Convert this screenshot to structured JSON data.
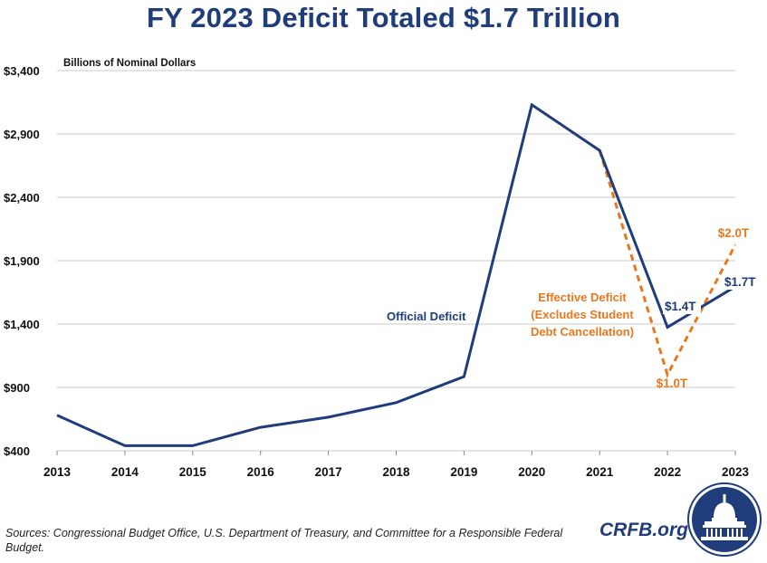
{
  "title": "FY 2023 Deficit Totaled $1.7 Trillion",
  "source": "Sources: Congressional Budget Office, U.S. Department of Treasury, and Committee for a Responsible Federal Budget.",
  "brand": "CRFB.org",
  "colors": {
    "navy": "#1f3d7a",
    "orange": "#e8781e",
    "grid": "#c8c8c8"
  },
  "chart_data": {
    "type": "line",
    "ylabel": "Billions of Nominal Dollars",
    "x": [
      "2013",
      "2014",
      "2015",
      "2016",
      "2017",
      "2018",
      "2019",
      "2020",
      "2021",
      "2022",
      "2023"
    ],
    "ylim": [
      400,
      3400
    ],
    "yticks": [
      400,
      900,
      1400,
      1900,
      2400,
      2900,
      3400
    ],
    "ytick_labels": [
      "$400",
      "$900",
      "$1,400",
      "$1,900",
      "$2,400",
      "$2,900",
      "$3,400"
    ],
    "grid": true,
    "series": [
      {
        "name": "Official Deficit",
        "style": "solid",
        "color": "#1f3d7a",
        "x": [
          "2013",
          "2014",
          "2015",
          "2016",
          "2017",
          "2018",
          "2019",
          "2020",
          "2021",
          "2022",
          "2023"
        ],
        "values": [
          680,
          440,
          440,
          585,
          665,
          780,
          985,
          3130,
          2770,
          1375,
          1695
        ]
      },
      {
        "name": "Effective Deficit (Excludes Student Debt Cancellation)",
        "style": "dashed",
        "color": "#e8781e",
        "x": [
          "2021",
          "2022",
          "2023"
        ],
        "values": [
          2770,
          1000,
          2025
        ]
      }
    ],
    "annotations": [
      {
        "text": "Official Deficit",
        "color": "#1f3d7a"
      },
      {
        "text": "$1.4T",
        "color": "#1f3d7a"
      },
      {
        "text": "$1.7T",
        "color": "#1f3d7a"
      },
      {
        "lines": [
          "Effective Deficit",
          "(Excludes Student",
          "Debt Cancellation)"
        ],
        "color": "#e8781e"
      },
      {
        "text": "$1.0T",
        "color": "#e8781e"
      },
      {
        "text": "$2.0T",
        "color": "#e8781e"
      }
    ]
  }
}
